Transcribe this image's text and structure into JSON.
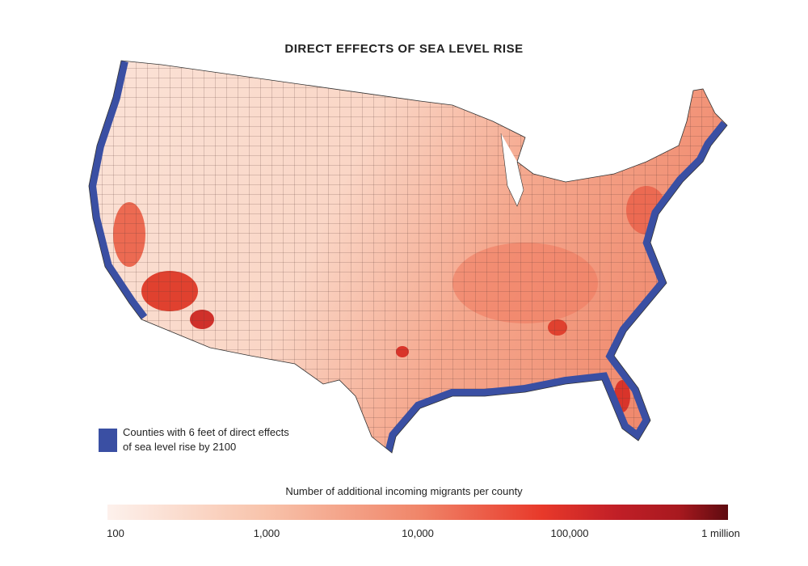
{
  "title": "DIRECT EFFECTS OF SEA LEVEL RISE",
  "legend": {
    "coastal_label": "Counties with 6 feet of direct effects of sea level rise by 2100",
    "coastal_color": "#3a4fa3"
  },
  "scale": {
    "title": "Number of additional incoming migrants per county",
    "ticks": [
      "100",
      "1,000",
      "10,000",
      "100,000",
      "1 million"
    ],
    "color_low": "#fdf1ec",
    "color_mid": "#e8392a",
    "color_high": "#5e0b10"
  }
}
